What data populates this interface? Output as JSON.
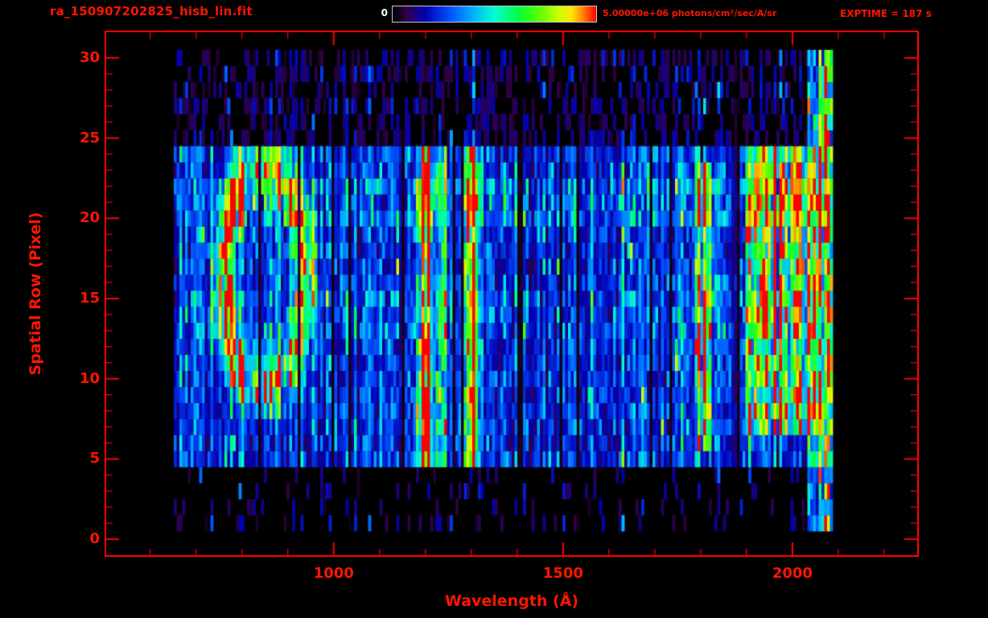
{
  "header": {
    "filename": "ra_150907202825_hisb_lin.fit",
    "colorbar_min": "0",
    "colorbar_max": "5.00000e+06 photons/cm²/sec/A/sr",
    "exptime": "EXPTIME = 187 s"
  },
  "chart_data": {
    "type": "heatmap",
    "title": "ra_150907202825_hisb_lin.fit",
    "xlabel": "Wavelength (Å)",
    "ylabel": "Spatial Row (Pixel)",
    "x_ticks": [
      1000,
      1500,
      2000
    ],
    "x_minor_step": 100,
    "y_ticks": [
      0,
      5,
      10,
      15,
      20,
      25,
      30
    ],
    "y_minor_step": 1,
    "xlim": [
      504,
      2272
    ],
    "ylim": [
      -1,
      31.6
    ],
    "grid": false,
    "legend": "none",
    "colorbar": {
      "min": 0,
      "max": 5000000,
      "min_label": "0",
      "max_label": "5.00000e+06",
      "units": "photons/cm²/sec/A/sr",
      "stops": [
        [
          0,
          "#000000"
        ],
        [
          0.07,
          "#30004a"
        ],
        [
          0.16,
          "#0000b4"
        ],
        [
          0.28,
          "#0050ff"
        ],
        [
          0.4,
          "#00b4ff"
        ],
        [
          0.5,
          "#00ffd2"
        ],
        [
          0.62,
          "#00ff3c"
        ],
        [
          0.73,
          "#64ff00"
        ],
        [
          0.82,
          "#d2ff00"
        ],
        [
          0.88,
          "#ffe600"
        ],
        [
          0.93,
          "#ff8c00"
        ],
        [
          1,
          "#ff0000"
        ]
      ]
    },
    "exposure_time_s": 187,
    "data_extent": {
      "wavelength": [
        650,
        2085
      ],
      "rows": [
        1,
        30
      ]
    },
    "features": {
      "signal_band": {
        "rows": [
          5,
          24
        ],
        "base_level": 0.2
      },
      "ring": {
        "center_wavelength": 848,
        "center_row": 16.5,
        "radius_wavelength": 92,
        "radius_rows": 7,
        "thickness": 0.24,
        "level": 0.5
      },
      "emission_lines": [
        {
          "wavelength": 1200,
          "sigma": 14,
          "rows": [
            5,
            24
          ],
          "level": 0.8,
          "cores": [
            {
              "rows": [
                5,
                12
              ],
              "boost": 0.5
            },
            {
              "rows": [
                19,
                23
              ],
              "boost": 0.3
            }
          ]
        },
        {
          "wavelength": 1240,
          "sigma": 10,
          "rows": [
            5,
            24
          ],
          "level": 0.35,
          "cores": []
        },
        {
          "wavelength": 1302,
          "sigma": 15,
          "rows": [
            5,
            24
          ],
          "level": 0.4,
          "cores": []
        },
        {
          "wavelength": 1810,
          "sigma": 13,
          "rows": [
            6,
            23
          ],
          "level": 0.5,
          "cores": []
        }
      ],
      "right_band": {
        "wavelength": [
          1900,
          2060
        ],
        "rows": [
          7,
          24
        ],
        "level": 0.38
      },
      "edge_column": {
        "wavelength": [
          2035,
          2085
        ],
        "rows": [
          1,
          30
        ],
        "level": 0.42
      },
      "red_sliver": {
        "wavelength": [
          2062,
          2076
        ],
        "rows": [
          24,
          28
        ],
        "level": 0.95
      },
      "row_streaks": [
        {
          "rows": [
            20,
            22
          ],
          "gain": 1.3
        },
        {
          "rows": [
            13,
            15
          ],
          "gain": 1.12
        }
      ]
    },
    "render": {
      "seed": 20150907,
      "columns": 288,
      "sparse_prob_outer_top": 0.45,
      "sparse_prob_outer_bottom": 0.16,
      "column_dropout_prob": 0.07,
      "bright_column_prob": 0.12
    }
  },
  "colors": {
    "axis_red": "#ff0000",
    "label_red": "#ff1500",
    "background": "#000000",
    "colorbar_border": "#c8c8c8",
    "min_label_white": "#ffffff"
  }
}
